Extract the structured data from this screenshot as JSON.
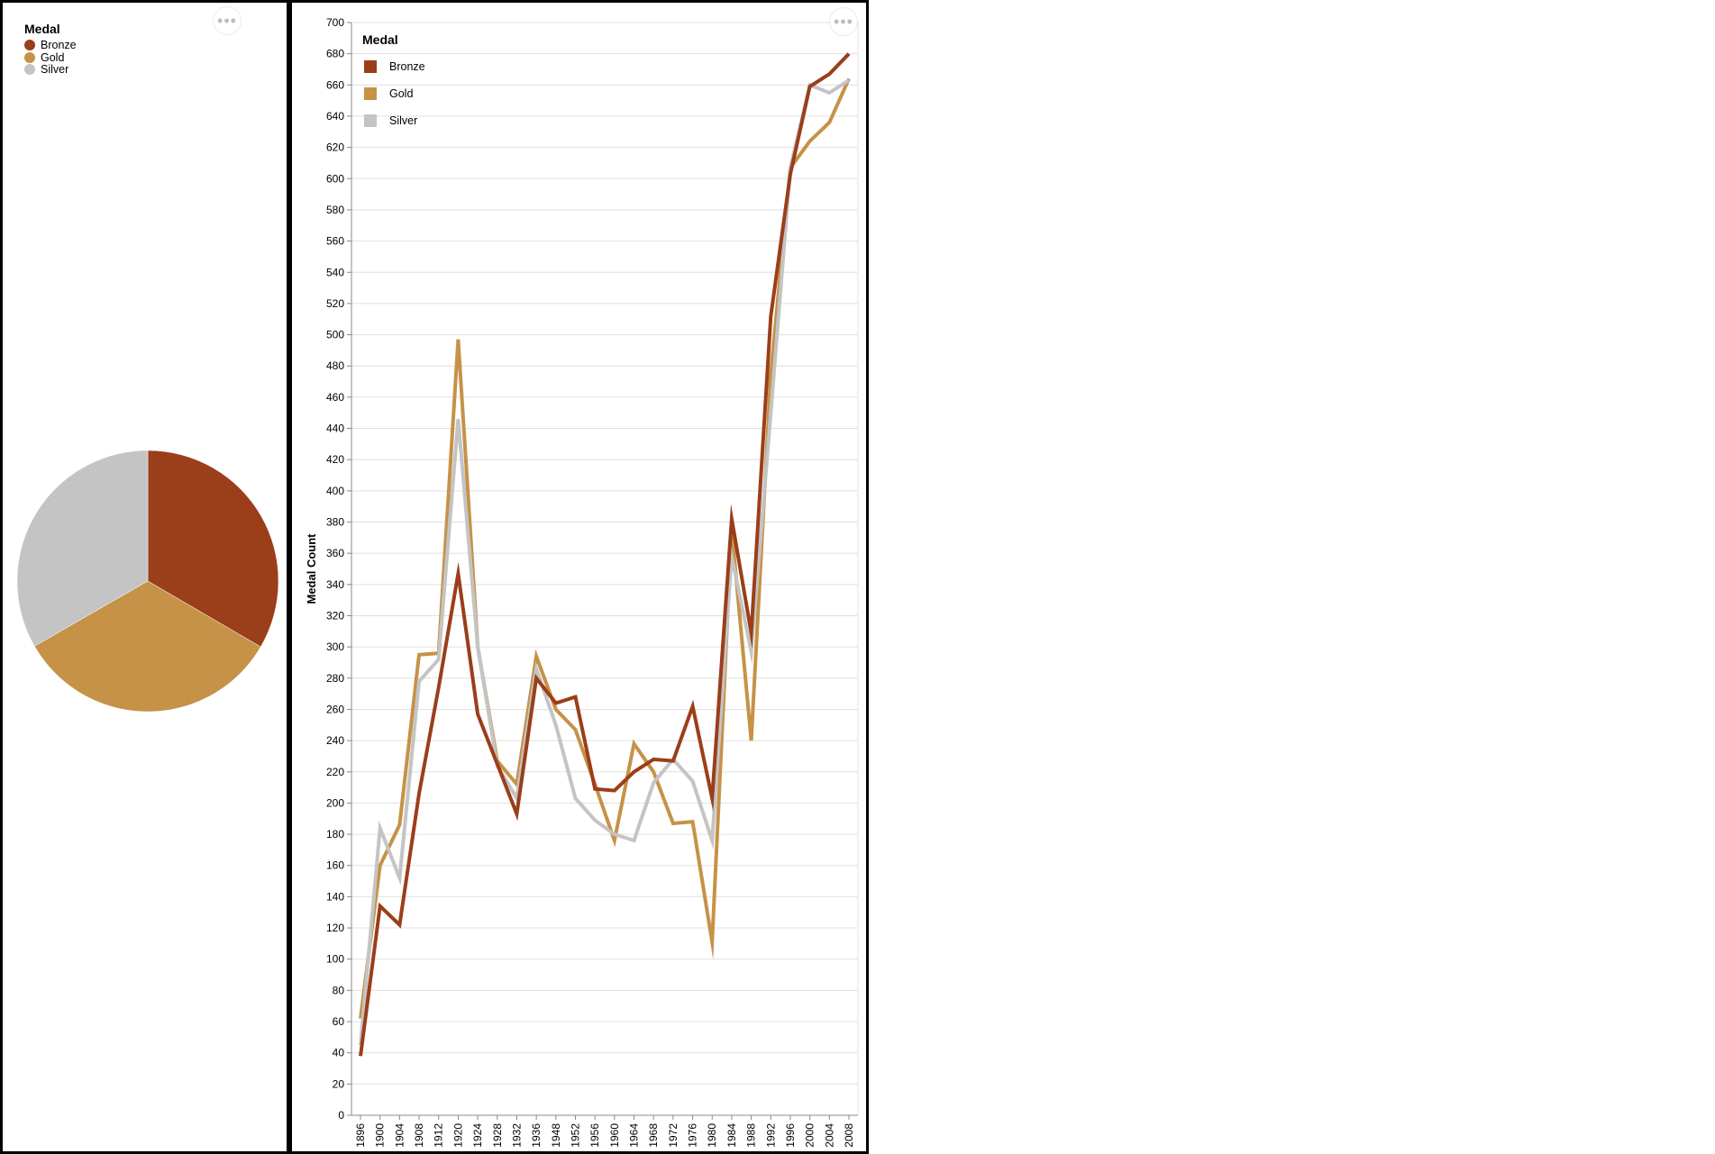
{
  "legend": {
    "title": "Medal",
    "items": [
      {
        "label": "Bronze",
        "color": "#9b3e1a"
      },
      {
        "label": "Gold",
        "color": "#c69247"
      },
      {
        "label": "Silver",
        "color": "#c4c4c4"
      }
    ]
  },
  "more_icon": "more-horizontal-icon",
  "chart_data": [
    {
      "type": "pie",
      "categories": [
        "Bronze",
        "Gold",
        "Silver"
      ],
      "values": [
        33.4,
        33.3,
        33.3
      ],
      "colors": [
        "#9b3e1a",
        "#c69247",
        "#c4c4c4"
      ],
      "legend_title": "Medal",
      "legend_position": "top-left"
    },
    {
      "type": "line",
      "ylabel": "Medal Count",
      "xlabel": "",
      "ylim": [
        0,
        700
      ],
      "ytick_step": 20,
      "grid": true,
      "legend_title": "Medal",
      "legend_position": "top-left",
      "x": [
        "1896",
        "1900",
        "1904",
        "1908",
        "1912",
        "1920",
        "1924",
        "1928",
        "1932",
        "1936",
        "1948",
        "1952",
        "1956",
        "1960",
        "1964",
        "1968",
        "1972",
        "1976",
        "1980",
        "1984",
        "1988",
        "1992",
        "1996",
        "2000",
        "2004",
        "2008"
      ],
      "series": [
        {
          "name": "Gold",
          "color": "#c69247",
          "values": [
            62,
            160,
            186,
            295,
            296,
            497,
            300,
            227,
            212,
            294,
            260,
            247,
            212,
            176,
            238,
            220,
            187,
            188,
            111,
            375,
            240,
            475,
            607,
            624,
            636,
            664
          ]
        },
        {
          "name": "Silver",
          "color": "#c4c4c4",
          "values": [
            45,
            184,
            152,
            278,
            292,
            446,
            300,
            224,
            203,
            286,
            250,
            203,
            189,
            180,
            176,
            213,
            228,
            214,
            176,
            358,
            297,
            450,
            607,
            660,
            655,
            663
          ]
        },
        {
          "name": "Bronze",
          "color": "#9b3e1a",
          "values": [
            38,
            134,
            122,
            206,
            274,
            347,
            257,
            225,
            193,
            280,
            264,
            268,
            209,
            208,
            220,
            228,
            227,
            262,
            203,
            382,
            309,
            512,
            603,
            659,
            667,
            680
          ]
        }
      ]
    }
  ]
}
